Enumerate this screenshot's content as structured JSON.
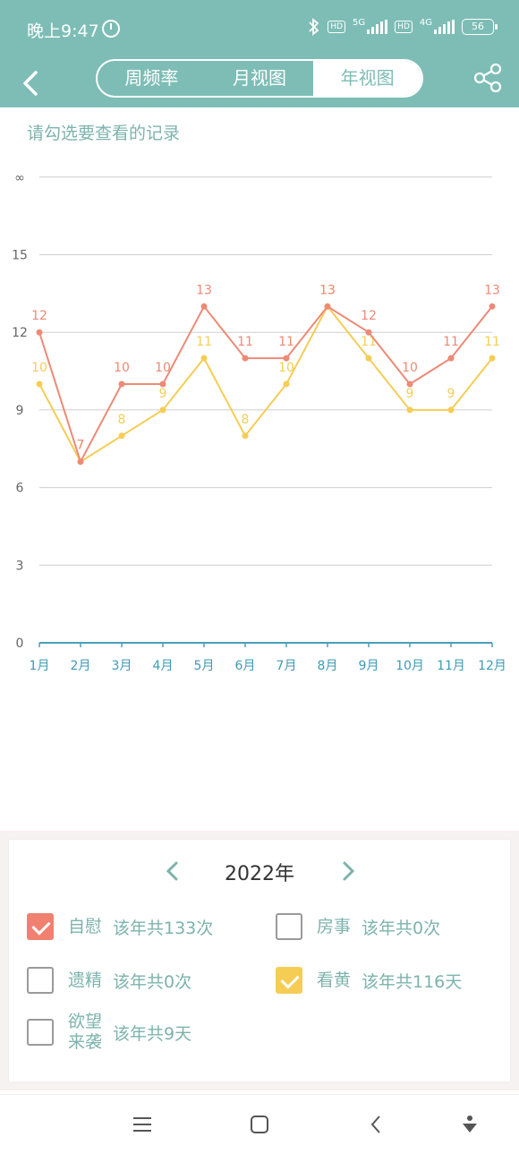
{
  "status": {
    "time": "晚上9:47",
    "net1": "5G",
    "net2": "4G",
    "hd": "HD",
    "battery": "56"
  },
  "nav": {
    "tabs": [
      "周频率",
      "月视图",
      "年视图"
    ],
    "active_tab": 2
  },
  "hint": "请勾选要查看的记录",
  "chart_data": {
    "type": "line",
    "categories": [
      "1月",
      "2月",
      "3月",
      "4月",
      "5月",
      "6月",
      "7月",
      "8月",
      "9月",
      "10月",
      "11月",
      "12月"
    ],
    "y_ticks": [
      "0",
      "3",
      "6",
      "9",
      "12",
      "15",
      "∞"
    ],
    "series": [
      {
        "name": "自慰",
        "color": "#ec8a76",
        "values": [
          12,
          7,
          10,
          10,
          13,
          11,
          11,
          13,
          12,
          10,
          11,
          13
        ]
      },
      {
        "name": "看黄",
        "color": "#f5cd55",
        "values": [
          10,
          7,
          8,
          9,
          11,
          8,
          10,
          13,
          11,
          9,
          9,
          11
        ]
      }
    ],
    "ylim": [
      0,
      18
    ],
    "grid": true
  },
  "panel": {
    "year": "2022年",
    "options": [
      {
        "name": "自慰",
        "count": "该年共133次",
        "checked": true,
        "color": "red"
      },
      {
        "name": "房事",
        "count": "该年共0次",
        "checked": false
      },
      {
        "name": "遗精",
        "count": "该年共0次",
        "checked": false
      },
      {
        "name": "看黄",
        "count": "该年共116天",
        "checked": true,
        "color": "yellow"
      },
      {
        "name": "欲望来袭",
        "count": "该年共9天",
        "checked": false
      }
    ]
  }
}
